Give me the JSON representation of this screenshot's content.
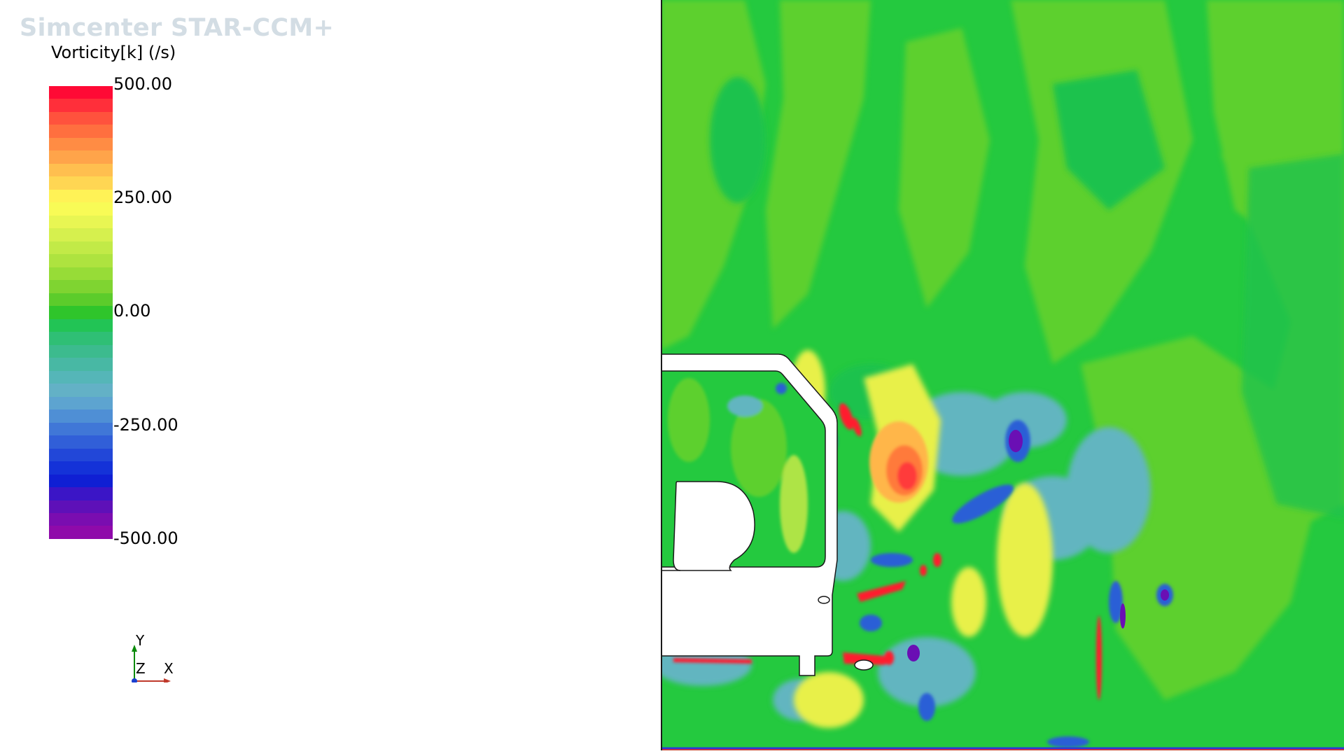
{
  "brand": "Simcenter STAR-CCM+",
  "scalar": {
    "title": "Vorticity[k] (/s)",
    "labels": [
      "500.00",
      "250.00",
      "0.00",
      "-250.00",
      "-500.00"
    ],
    "colors": [
      "#ff0a35",
      "#ff2f3a",
      "#ff523d",
      "#ff6f3f",
      "#ff8c44",
      "#ffa44a",
      "#ffbf4f",
      "#ffd653",
      "#fff256",
      "#f8fb56",
      "#e8f653",
      "#d6f04e",
      "#c2ea47",
      "#aee33f",
      "#97dc37",
      "#7fd431",
      "#5ccc2b",
      "#2fc52b",
      "#22c455",
      "#2fbf75",
      "#3cbb8e",
      "#48b8a4",
      "#55b6b8",
      "#63b1c6",
      "#5da4d0",
      "#4f8fd5",
      "#4077d7",
      "#315fd8",
      "#2247d8",
      "#1432d8",
      "#0f1fd4",
      "#3b15c6",
      "#5e10b8",
      "#7a0db0",
      "#8f0aaa"
    ]
  },
  "triad": {
    "y": "Y",
    "z": "Z",
    "x": "X"
  },
  "field_colors": {
    "base": "#24c93f",
    "light": "#5dd02e",
    "yellow": "#e8f04a",
    "cyan": "#62b5c0",
    "blue": "#2b5fd6",
    "purple": "#6a0fb4",
    "red": "#ff1a2e",
    "orange": "#ff7a3a"
  }
}
